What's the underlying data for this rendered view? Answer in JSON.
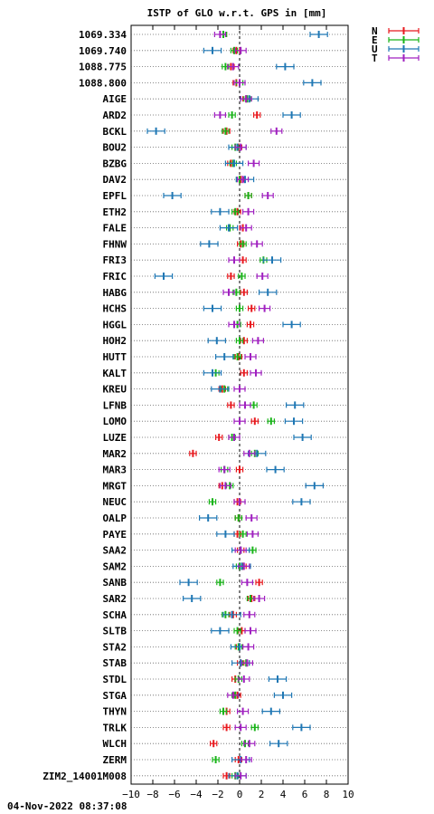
{
  "timestamp": "04-Nov-2022 08:37:08",
  "chart_data": {
    "type": "scatter",
    "title": "ISTP of GLO w.r.t. GPS in [mm]",
    "xlabel": "",
    "ylabel": "",
    "xlim": [
      -10,
      10
    ],
    "xticks": [
      -10,
      -8,
      -6,
      -4,
      -2,
      0,
      2,
      4,
      6,
      8,
      10
    ],
    "grid": true,
    "legend_position": "top-right",
    "categories": [
      "1069.334",
      "1069.740",
      "1088.775",
      "1088.800",
      "AIGE",
      "ARD2",
      "BCKL",
      "BOU2",
      "BZBG",
      "DAV2",
      "EPFL",
      "ETH2",
      "FALE",
      "FHNW",
      "FRI3",
      "FRIC",
      "HABG",
      "HCHS",
      "HGGL",
      "HOH2",
      "HUTT",
      "KALT",
      "KREU",
      "LFNB",
      "LOMO",
      "LUZE",
      "MAR2",
      "MAR3",
      "MRGT",
      "NEUC",
      "OALP",
      "PAYE",
      "SAA2",
      "SAM2",
      "SANB",
      "SAR2",
      "SCHA",
      "SLTB",
      "STA2",
      "STAB",
      "STDL",
      "STGA",
      "THYN",
      "TRLK",
      "WLCH",
      "ZERM",
      "ZIM2_14001M008"
    ],
    "series": [
      {
        "name": "N",
        "color": "#e8191e",
        "error": 0.3,
        "values": [
          -1.5,
          -0.3,
          -0.8,
          -0.3,
          0.6,
          1.6,
          -1.2,
          -0.1,
          -0.8,
          0.1,
          0.8,
          -0.2,
          0.3,
          0.1,
          0.3,
          -0.8,
          0.4,
          1.1,
          1.0,
          0.4,
          -0.1,
          0.4,
          -1.6,
          -0.8,
          1.4,
          -1.9,
          -4.3,
          0.0,
          -1.6,
          -0.2,
          -0.1,
          -0.2,
          0.1,
          0.3,
          1.8,
          1.1,
          -0.6,
          0.2,
          0.0,
          0.1,
          -0.4,
          -0.2,
          -1.2,
          -1.2,
          -2.4,
          -0.1,
          -1.2
        ]
      },
      {
        "name": "E",
        "color": "#19b419",
        "error": 0.3,
        "values": [
          -1.5,
          -0.5,
          -1.3,
          0.0,
          0.7,
          -0.7,
          -1.3,
          -0.4,
          -0.6,
          0.0,
          0.8,
          -0.4,
          -0.9,
          0.3,
          2.2,
          0.2,
          -0.3,
          0.0,
          -0.2,
          0.0,
          -0.2,
          -2.2,
          -1.4,
          1.3,
          2.9,
          -0.7,
          1.4,
          -1.4,
          -0.9,
          -2.5,
          -0.1,
          0.3,
          1.2,
          0.0,
          -1.8,
          1.0,
          -1.3,
          -0.2,
          -0.1,
          0.6,
          -0.1,
          -0.4,
          -1.5,
          1.4,
          0.5,
          -2.2,
          -0.4
        ]
      },
      {
        "name": "U",
        "color": "#1f77b4",
        "error": 0.8,
        "values": [
          7.3,
          -2.5,
          4.2,
          6.7,
          0.9,
          4.8,
          -7.7,
          -0.2,
          -0.5,
          0.5,
          -6.2,
          -1.8,
          -1.0,
          -2.8,
          3.0,
          -7.0,
          2.6,
          -2.5,
          4.8,
          -2.1,
          -1.4,
          -2.5,
          -1.8,
          5.1,
          5.0,
          5.8,
          1.6,
          3.3,
          6.9,
          5.7,
          -2.9,
          -1.3,
          0.1,
          0.2,
          -4.7,
          -4.4,
          -0.7,
          -1.8,
          0.0,
          0.1,
          3.5,
          4.0,
          2.9,
          5.7,
          3.6,
          0.1,
          -0.2
        ]
      },
      {
        "name": "T",
        "color": "#a020c0",
        "error": 0.5,
        "values": [
          -1.8,
          0.1,
          -0.6,
          0.0,
          0.6,
          -1.8,
          3.4,
          0.1,
          1.3,
          0.3,
          2.6,
          0.8,
          0.6,
          1.6,
          -0.5,
          2.1,
          -1.0,
          2.3,
          -0.5,
          1.7,
          1.0,
          1.5,
          0.0,
          0.5,
          0.0,
          -0.5,
          0.9,
          -1.4,
          -1.3,
          0.0,
          1.1,
          1.2,
          0.1,
          0.4,
          0.7,
          1.8,
          0.9,
          1.0,
          0.8,
          0.7,
          0.4,
          -0.6,
          0.3,
          0.1,
          0.9,
          0.6,
          0.1
        ]
      }
    ]
  }
}
